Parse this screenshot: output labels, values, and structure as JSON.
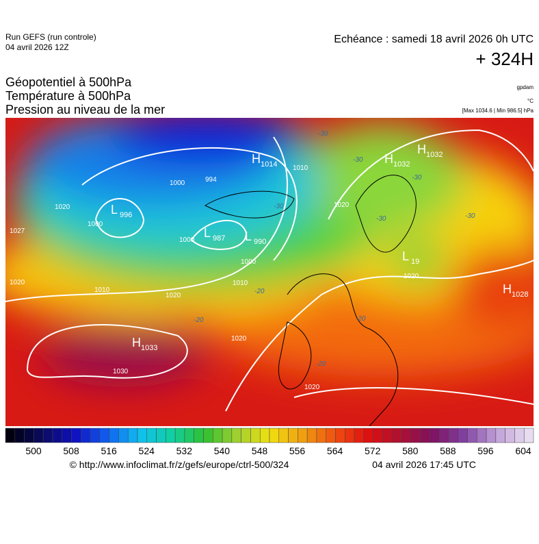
{
  "header": {
    "run": "Run GEFS (run controle)",
    "run_date": "04 avril 2026 12Z",
    "echeance": "Echéance : samedi 18 avril 2026 0h UTC",
    "lead": "+ 324H"
  },
  "titles": [
    "Géopotentiel à 500hPa",
    "Température à 500hPa",
    "Pression au niveau de la mer"
  ],
  "units": {
    "geopotential": "gpdam",
    "temperature": "°C",
    "pressure": "[Max 1034.6 | Min 986.5] hPa"
  },
  "pressure_centers": [
    {
      "kind": "H",
      "value": "1014"
    },
    {
      "kind": "L",
      "value": "996"
    },
    {
      "kind": "L",
      "value": "987"
    },
    {
      "kind": "L",
      "value": "990"
    },
    {
      "kind": "H",
      "value": "1032"
    },
    {
      "kind": "H",
      "value": "1032"
    },
    {
      "kind": "L",
      "value": "19"
    },
    {
      "kind": "H",
      "value": "1033"
    },
    {
      "kind": "H",
      "value": "1028"
    }
  ],
  "isobar_labels": [
    "1027",
    "1020",
    "1000",
    "1000",
    "994",
    "1010",
    "1000",
    "1000",
    "1010",
    "1010",
    "1020",
    "1020",
    "1020",
    "1020",
    "1030",
    "1020",
    "1020"
  ],
  "temperature_labels": [
    "-30",
    "-30",
    "-30",
    "-30",
    "-30",
    "-30",
    "-20",
    "-20",
    "-20",
    "-20"
  ],
  "colorbar_labels": [
    "500",
    "508",
    "516",
    "524",
    "532",
    "540",
    "548",
    "556",
    "564",
    "572",
    "580",
    "588",
    "596",
    "604"
  ],
  "footer": {
    "url": "© http://www.infoclimat.fr/z/gefs/europe/ctrl-500/324",
    "generated": "04 avril 2026 17:45 UTC"
  }
}
